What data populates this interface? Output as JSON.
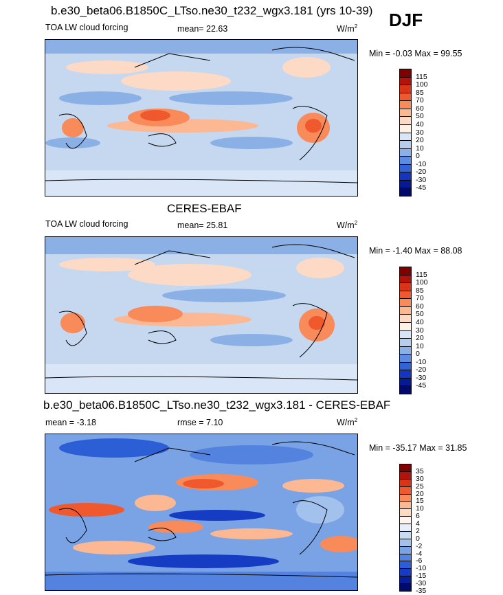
{
  "season": "DJF",
  "colors": {
    "fifteen": [
      "#800000",
      "#b3130a",
      "#d93418",
      "#f0592e",
      "#f98a5a",
      "#fbb893",
      "#fcdac6",
      "#fff0e6",
      "#d9e6f7",
      "#b6cdee",
      "#8ab0e6",
      "#5b8ce0",
      "#2f63d6",
      "#1436bf",
      "#061a91",
      "#000a6b"
    ],
    "diff": [
      "#800000",
      "#b3130a",
      "#d93418",
      "#f0592e",
      "#f98a5a",
      "#fbb893",
      "#fcdac6",
      "#fff5ee",
      "#e6effa",
      "#c7dbf3",
      "#a2c1ec",
      "#7aa3e5",
      "#5483df",
      "#2c5fd6",
      "#153cc2",
      "#061e99",
      "#000a6b"
    ]
  },
  "panels": [
    {
      "title": "b.e30_beta06.B1850C_LTso.ne30_t232_wgx3.181 (yrs 10-39)",
      "left_label": "TOA LW cloud forcing",
      "center_label": "mean=  22.63",
      "units_base": "W/m",
      "units_exp": "2",
      "minmax": "Min =  -0.03 Max =  99.55",
      "colorbar_labels": [
        "115",
        "100",
        "85",
        "70",
        "60",
        "50",
        "40",
        "30",
        "20",
        "10",
        "0",
        "-10",
        "-20",
        "-30",
        "-45"
      ]
    },
    {
      "title": "CERES-EBAF",
      "left_label": "TOA LW cloud forcing",
      "center_label": "mean=  25.81",
      "units_base": "W/m",
      "units_exp": "2",
      "minmax": "Min =  -1.40 Max =  88.08",
      "colorbar_labels": [
        "115",
        "100",
        "85",
        "70",
        "60",
        "50",
        "40",
        "30",
        "20",
        "10",
        "0",
        "-10",
        "-20",
        "-30",
        "-45"
      ]
    },
    {
      "title": "b.e30_beta06.B1850C_LTso.ne30_t232_wgx3.181 - CERES-EBAF",
      "left_label": "mean =  -3.18",
      "center_label": "rmse =  7.10",
      "units_base": "W/m",
      "units_exp": "2",
      "minmax": "Min = -35.17 Max =  31.85",
      "colorbar_labels": [
        "35",
        "30",
        "25",
        "20",
        "15",
        "10",
        "6",
        "4",
        "2",
        "0",
        "-2",
        "-4",
        "-6",
        "-10",
        "-15",
        "-30",
        "-35"
      ]
    }
  ]
}
